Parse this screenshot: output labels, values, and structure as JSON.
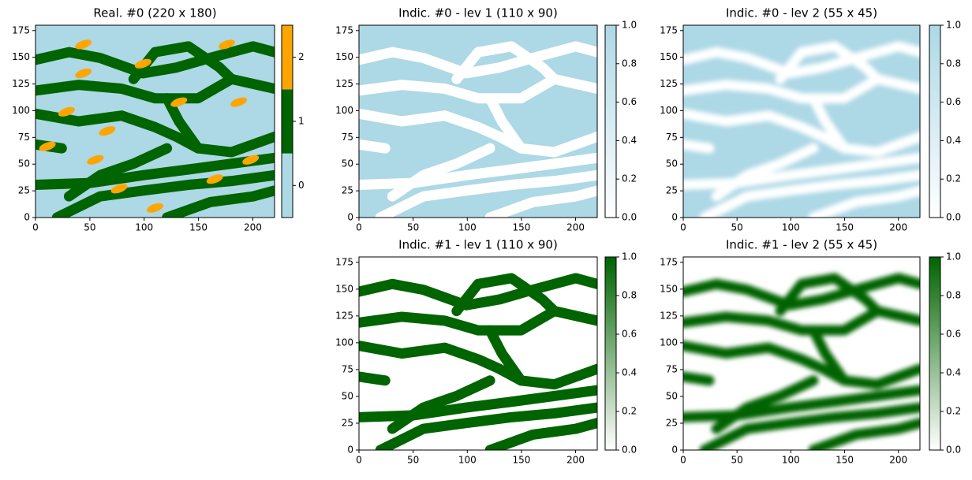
{
  "chart_data": [
    {
      "type": "heatmap",
      "title": "Real. #0 (220 x 180)",
      "xlim": [
        0,
        220
      ],
      "xticks": [
        0,
        50,
        100,
        150,
        200
      ],
      "ylim": [
        0,
        180
      ],
      "yticks": [
        0,
        25,
        50,
        75,
        100,
        125,
        150,
        175
      ],
      "colorbar": {
        "lim": [
          -0.5,
          2.5
        ],
        "ticks": [
          0,
          1,
          2
        ],
        "colors": [
          "#add8e6",
          "#006400",
          "#ffa500"
        ]
      }
    },
    {
      "type": "heatmap",
      "title": "Indic. #0 - lev 1 (110 x 90)",
      "xlim": [
        0,
        220
      ],
      "xticks": [
        0,
        50,
        100,
        150,
        200
      ],
      "ylim": [
        0,
        180
      ],
      "yticks": [
        0,
        25,
        50,
        75,
        100,
        125,
        150,
        175
      ],
      "colorbar": {
        "lim": [
          0,
          1
        ],
        "ticks": [
          {
            "value": 0,
            "label": "0.0"
          },
          {
            "value": 0.2,
            "label": "0.2"
          },
          {
            "value": 0.4,
            "label": "0.4"
          },
          {
            "value": 0.6,
            "label": "0.6"
          },
          {
            "value": 0.8,
            "label": "0.8"
          },
          {
            "value": 1,
            "label": "1.0"
          }
        ],
        "colors": [
          "#ffffff",
          "#add8e6"
        ]
      }
    },
    {
      "type": "heatmap",
      "title": "Indic. #0 - lev 2 (55 x 45)",
      "xlim": [
        0,
        220
      ],
      "xticks": [
        0,
        50,
        100,
        150,
        200
      ],
      "ylim": [
        0,
        180
      ],
      "yticks": [
        0,
        25,
        50,
        75,
        100,
        125,
        150,
        175
      ],
      "colorbar": {
        "lim": [
          0,
          1
        ],
        "ticks": [
          {
            "value": 0,
            "label": "0.0"
          },
          {
            "value": 0.2,
            "label": "0.2"
          },
          {
            "value": 0.4,
            "label": "0.4"
          },
          {
            "value": 0.6,
            "label": "0.6"
          },
          {
            "value": 0.8,
            "label": "0.8"
          },
          {
            "value": 1,
            "label": "1.0"
          }
        ],
        "colors": [
          "#ffffff",
          "#add8e6"
        ]
      }
    },
    {
      "type": "heatmap",
      "title": "Indic. #1 - lev 1 (110 x 90)",
      "xlim": [
        0,
        220
      ],
      "xticks": [
        0,
        50,
        100,
        150,
        200
      ],
      "ylim": [
        0,
        180
      ],
      "yticks": [
        0,
        25,
        50,
        75,
        100,
        125,
        150,
        175
      ],
      "colorbar": {
        "lim": [
          0,
          1
        ],
        "ticks": [
          {
            "value": 0,
            "label": "0.0"
          },
          {
            "value": 0.2,
            "label": "0.2"
          },
          {
            "value": 0.4,
            "label": "0.4"
          },
          {
            "value": 0.6,
            "label": "0.6"
          },
          {
            "value": 0.8,
            "label": "0.8"
          },
          {
            "value": 1,
            "label": "1.0"
          }
        ],
        "colors": [
          "#ffffff",
          "#006400"
        ]
      }
    },
    {
      "type": "heatmap",
      "title": "Indic. #1 - lev 2 (55 x 45)",
      "xlim": [
        0,
        220
      ],
      "xticks": [
        0,
        50,
        100,
        150,
        200
      ],
      "ylim": [
        0,
        180
      ],
      "yticks": [
        0,
        25,
        50,
        75,
        100,
        125,
        150,
        175
      ],
      "colorbar": {
        "lim": [
          0,
          1
        ],
        "ticks": [
          {
            "value": 0,
            "label": "0.0"
          },
          {
            "value": 0.2,
            "label": "0.2"
          },
          {
            "value": 0.4,
            "label": "0.4"
          },
          {
            "value": 0.6,
            "label": "0.6"
          },
          {
            "value": 0.8,
            "label": "0.8"
          },
          {
            "value": 1,
            "label": "1.0"
          }
        ],
        "colors": [
          "#ffffff",
          "#006400"
        ]
      }
    }
  ]
}
